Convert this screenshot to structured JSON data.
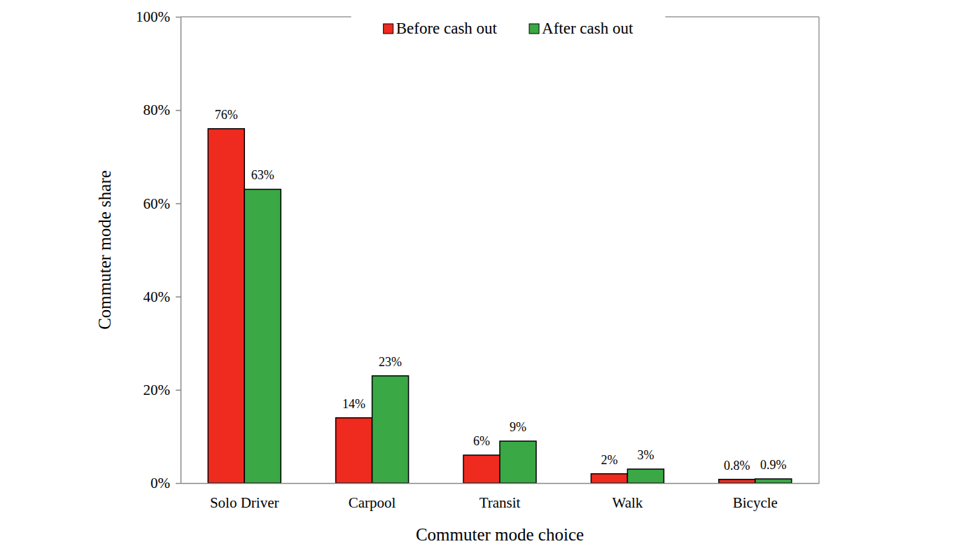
{
  "chart_data": {
    "type": "bar",
    "x_label": "Commuter mode choice",
    "y_label": "Commuter mode share",
    "categories": [
      "Solo Driver",
      "Carpool",
      "Transit",
      "Walk",
      "Bicycle"
    ],
    "series": [
      {
        "name": "Before cash out",
        "color": "#ef2a1f",
        "values": [
          76,
          14,
          6,
          2,
          0.8
        ],
        "value_labels": [
          "76%",
          "14%",
          "6%",
          "2%",
          "0.8%"
        ]
      },
      {
        "name": "After cash out",
        "color": "#3aa845",
        "values": [
          63,
          23,
          9,
          3,
          0.9
        ],
        "value_labels": [
          "63%",
          "23%",
          "9%",
          "3%",
          "0.9%"
        ]
      }
    ],
    "ylim": [
      0,
      100
    ],
    "yticks": [
      {
        "value": 0,
        "label": "0%"
      },
      {
        "value": 20,
        "label": "20%"
      },
      {
        "value": 40,
        "label": "40%"
      },
      {
        "value": 60,
        "label": "60%"
      },
      {
        "value": 80,
        "label": "80%"
      },
      {
        "value": 100,
        "label": "100%"
      }
    ],
    "grid": false,
    "legend": "top",
    "data_labels": true
  }
}
